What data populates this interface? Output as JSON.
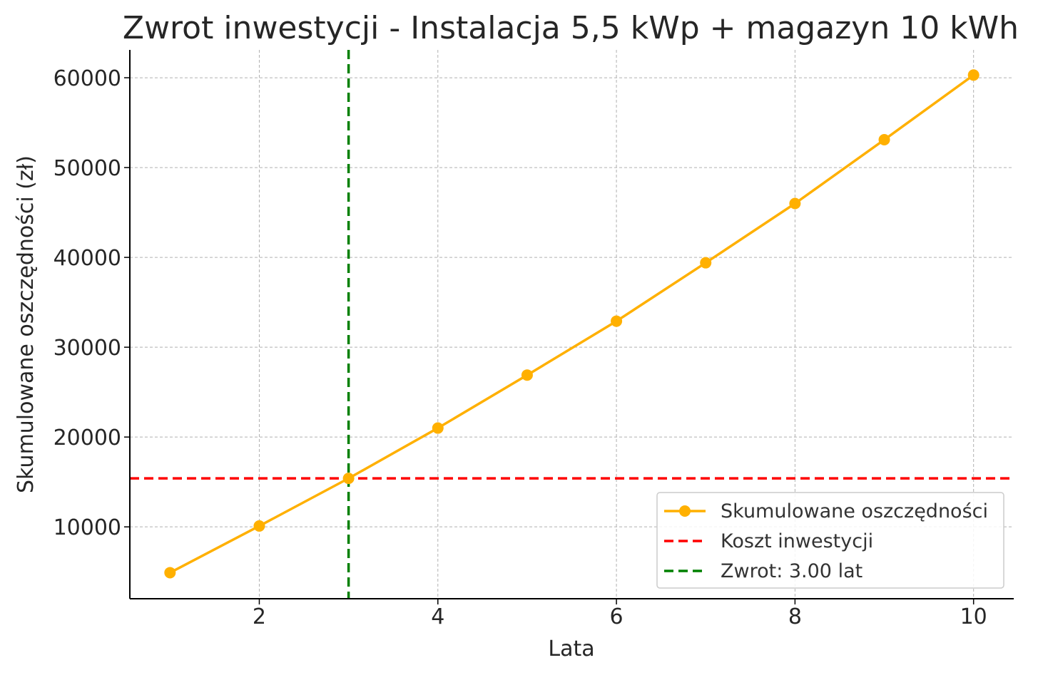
{
  "chart_data": {
    "type": "line",
    "title": "Zwrot inwestycji - Instalacja 5,5 kWp + magazyn 10 kWh",
    "xlabel": "Lata",
    "ylabel": "Skumulowane oszczędności (zł)",
    "x": [
      1,
      2,
      3,
      4,
      5,
      6,
      7,
      8,
      9,
      10
    ],
    "series": [
      {
        "name": "Skumulowane oszczędności",
        "color": "#FFB000",
        "values": [
          4900,
          10100,
          15400,
          21000,
          26900,
          32900,
          39400,
          46000,
          53100,
          60300
        ]
      }
    ],
    "hlines": [
      {
        "name": "Koszt inwestycji",
        "y": 15400,
        "color": "#FF0000",
        "style": "dashed"
      }
    ],
    "vlines": [
      {
        "name": "Zwrot: 3.00 lat",
        "x": 3.0,
        "color": "#008000",
        "style": "dashed"
      }
    ],
    "xlim": [
      0.55,
      10.45
    ],
    "ylim": [
      2000,
      63100
    ],
    "xticks": [
      "2",
      "4",
      "6",
      "8",
      "10"
    ],
    "xtick_values": [
      2,
      4,
      6,
      8,
      10
    ],
    "yticks": [
      "10000",
      "20000",
      "30000",
      "40000",
      "50000",
      "60000"
    ],
    "ytick_values": [
      10000,
      20000,
      30000,
      40000,
      50000,
      60000
    ],
    "grid": true,
    "legend_position": "lower-right"
  }
}
